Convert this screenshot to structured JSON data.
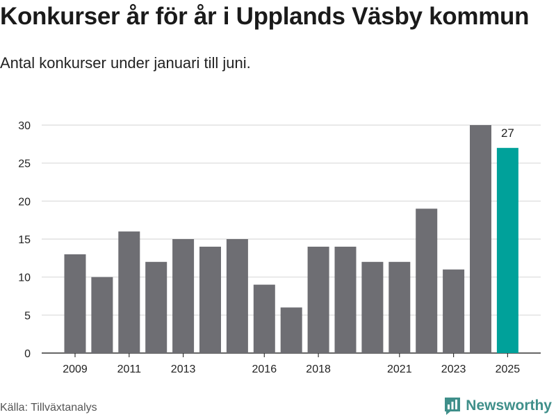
{
  "title": "Konkurser år för år i Upplands Väsby kommun",
  "subtitle": "Antal konkurser under januari till juni.",
  "source": "Källa: Tillväxtanalys",
  "brand": {
    "name": "Newsworthy",
    "icon": "newsworthy-logo-icon",
    "color": "#3f8f8a"
  },
  "chart_data": {
    "type": "bar",
    "categories": [
      "2009",
      "2010",
      "2011",
      "2012",
      "2013",
      "2014",
      "2015",
      "2016",
      "2017",
      "2018",
      "2019",
      "2020",
      "2021",
      "2022",
      "2023",
      "2024",
      "2025"
    ],
    "values": [
      13,
      10,
      16,
      12,
      15,
      14,
      15,
      9,
      6,
      14,
      14,
      12,
      12,
      19,
      11,
      30,
      27
    ],
    "x_tick_labels": [
      "2009",
      "2011",
      "2013",
      "2016",
      "2018",
      "2021",
      "2023",
      "2025"
    ],
    "y_ticks": [
      0,
      5,
      10,
      15,
      20,
      25,
      30
    ],
    "ylim": [
      0,
      30
    ],
    "grid": true,
    "bar_color": "#6e6e73",
    "highlight_color": "#00a19a",
    "highlight_category": "2025",
    "data_labels": [
      {
        "category": "2025",
        "value": "27"
      }
    ]
  }
}
